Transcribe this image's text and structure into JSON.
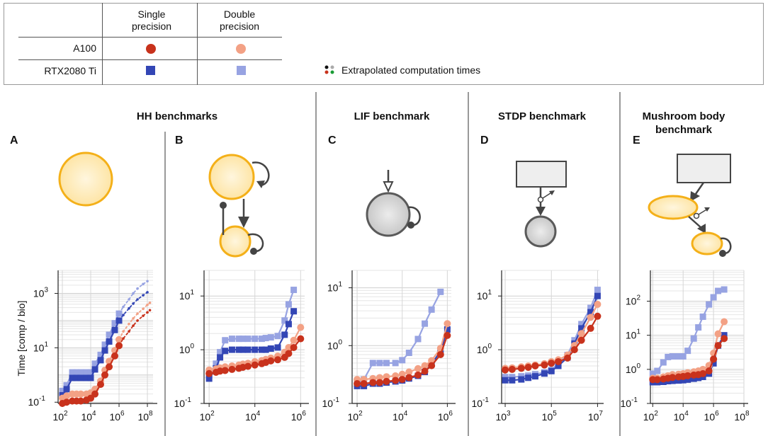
{
  "legend": {
    "col_single": "Single precision",
    "col_double": "Double precision",
    "row_a100": "A100",
    "row_rtx": "RTX2080 Ti",
    "extrapolated": "Extrapolated computation times"
  },
  "colors": {
    "a100_single": "#c8321c",
    "a100_double": "#f3a185",
    "rtx_single": "#3346b5",
    "rtx_double": "#97a3e2",
    "neuron_fill": "#fde9b3",
    "neuron_stroke": "#f4b019",
    "lif_fill": "#cfcfcf",
    "lif_stroke": "#5a5a5a"
  },
  "header": {
    "hh": "HH benchmarks",
    "lif": "LIF benchmark",
    "stdp": "STDP benchmark",
    "mb_line1": "Mushroom body",
    "mb_line2": "benchmark"
  },
  "labels": {
    "A": "A",
    "B": "B",
    "C": "C",
    "D": "D",
    "E": "E"
  },
  "ylabel": "Time [comp / bio]",
  "chart_data": [
    {
      "panel": "A",
      "type": "line",
      "xscale": "log",
      "yscale": "log",
      "xlim": [
        50,
        250000000
      ],
      "ylim": [
        0.09,
        7000
      ],
      "xticks": [
        {
          "v": 100,
          "e": "2"
        },
        {
          "v": 10000,
          "e": "4"
        },
        {
          "v": 1000000,
          "e": "6"
        },
        {
          "v": 100000000,
          "e": "8"
        }
      ],
      "yticks": [
        {
          "v": 0.1,
          "e": "-1"
        },
        {
          "v": 10,
          "e": "1"
        },
        {
          "v": 1000,
          "e": "3"
        }
      ],
      "series": [
        {
          "name": "RTX2080 Ti double",
          "key": "rtx_double",
          "marker": "square",
          "x": [
            100,
            200,
            500,
            1000,
            2000,
            5000,
            10000,
            20000,
            50000,
            100000,
            200000,
            500000,
            1000000
          ],
          "y": [
            0.26,
            0.42,
            1.25,
            1.25,
            1.25,
            1.25,
            1.25,
            2.6,
            5.5,
            13,
            30,
            80,
            180
          ],
          "ex": [
            2000000,
            5000000,
            10000000,
            20000000,
            50000000,
            100000000
          ],
          "ey": [
            320,
            600,
            1000,
            1500,
            2200,
            2800
          ]
        },
        {
          "name": "RTX2080 Ti single",
          "key": "rtx_single",
          "marker": "square",
          "x": [
            100,
            200,
            500,
            1000,
            2000,
            5000,
            10000,
            20000,
            50000,
            100000,
            200000,
            500000,
            1000000
          ],
          "y": [
            0.18,
            0.3,
            0.78,
            0.78,
            0.78,
            0.78,
            0.78,
            1.6,
            3.5,
            8,
            17,
            45,
            100
          ],
          "ex": [
            2000000,
            5000000,
            10000000,
            20000000,
            50000000,
            100000000
          ],
          "ey": [
            160,
            280,
            420,
            600,
            850,
            1100
          ]
        },
        {
          "name": "A100 double",
          "key": "a100_double",
          "marker": "circle",
          "x": [
            100,
            200,
            500,
            1000,
            2000,
            5000,
            10000,
            20000,
            50000,
            100000,
            200000,
            500000,
            1000000
          ],
          "y": [
            0.14,
            0.17,
            0.2,
            0.2,
            0.2,
            0.2,
            0.22,
            0.3,
            0.6,
            1.5,
            3.2,
            8,
            20
          ],
          "ex": [
            2000000,
            5000000,
            10000000,
            20000000,
            50000000,
            100000000,
            150000000
          ],
          "ey": [
            40,
            75,
            120,
            180,
            270,
            380,
            450
          ]
        },
        {
          "name": "A100 single",
          "key": "a100_single",
          "marker": "circle",
          "x": [
            100,
            200,
            500,
            1000,
            2000,
            5000,
            10000,
            20000,
            50000,
            100000,
            200000,
            500000,
            1000000
          ],
          "y": [
            0.09,
            0.1,
            0.11,
            0.11,
            0.11,
            0.12,
            0.14,
            0.2,
            0.45,
            1,
            2,
            5,
            12
          ],
          "ex": [
            2000000,
            5000000,
            10000000,
            20000000,
            50000000,
            100000000,
            150000000
          ],
          "ey": [
            22,
            40,
            65,
            100,
            150,
            200,
            240
          ]
        }
      ]
    },
    {
      "panel": "B",
      "type": "line",
      "xscale": "log",
      "yscale": "log",
      "xlim": [
        60,
        1500000
      ],
      "ylim": [
        0.1,
        30
      ],
      "xticks": [
        {
          "v": 100,
          "e": "2"
        },
        {
          "v": 10000,
          "e": "4"
        },
        {
          "v": 1000000,
          "e": "6"
        }
      ],
      "yticks": [
        {
          "v": 0.1,
          "e": "-1"
        },
        {
          "v": 1,
          "e": "0"
        },
        {
          "v": 10,
          "e": "1"
        }
      ],
      "series": [
        {
          "name": "RTX2080 Ti double",
          "key": "rtx_double",
          "marker": "square",
          "x": [
            100,
            200,
            300,
            500,
            1000,
            2000,
            3000,
            5000,
            10000,
            20000,
            30000,
            50000,
            100000,
            200000,
            300000,
            500000
          ],
          "y": [
            0.34,
            0.55,
            0.9,
            1.5,
            1.6,
            1.6,
            1.6,
            1.6,
            1.6,
            1.6,
            1.65,
            1.7,
            1.8,
            3.5,
            7,
            13
          ]
        },
        {
          "name": "RTX2080 Ti single",
          "key": "rtx_single",
          "marker": "square",
          "x": [
            100,
            200,
            300,
            500,
            1000,
            2000,
            3000,
            5000,
            10000,
            20000,
            30000,
            50000,
            100000,
            200000,
            300000,
            500000
          ],
          "y": [
            0.29,
            0.45,
            0.72,
            0.95,
            1.0,
            1.0,
            1.0,
            1.0,
            1.0,
            1.0,
            1.0,
            1.05,
            1.1,
            1.9,
            3,
            5.2
          ]
        },
        {
          "name": "A100 double",
          "key": "a100_double",
          "marker": "circle",
          "x": [
            100,
            200,
            300,
            500,
            1000,
            2000,
            3000,
            5000,
            10000,
            20000,
            30000,
            50000,
            100000,
            200000,
            300000,
            500000,
            1000000
          ],
          "y": [
            0.42,
            0.44,
            0.46,
            0.48,
            0.5,
            0.52,
            0.54,
            0.56,
            0.6,
            0.63,
            0.66,
            0.7,
            0.76,
            0.9,
            1.1,
            1.5,
            2.6
          ]
        },
        {
          "name": "A100 single",
          "key": "a100_single",
          "marker": "circle",
          "x": [
            100,
            200,
            300,
            500,
            1000,
            2000,
            3000,
            5000,
            10000,
            20000,
            30000,
            50000,
            100000,
            200000,
            300000,
            500000,
            1000000
          ],
          "y": [
            0.36,
            0.38,
            0.4,
            0.41,
            0.43,
            0.45,
            0.47,
            0.49,
            0.52,
            0.55,
            0.58,
            0.62,
            0.65,
            0.72,
            0.85,
            1.1,
            1.6
          ]
        }
      ]
    },
    {
      "panel": "C",
      "type": "line",
      "xscale": "log",
      "yscale": "log",
      "xlim": [
        60,
        1500000
      ],
      "ylim": [
        0.1,
        20
      ],
      "xticks": [
        {
          "v": 100,
          "e": "2"
        },
        {
          "v": 10000,
          "e": "4"
        },
        {
          "v": 1000000,
          "e": "6"
        }
      ],
      "yticks": [
        {
          "v": 0.1,
          "e": "-1"
        },
        {
          "v": 1,
          "e": "0"
        },
        {
          "v": 10,
          "e": "1"
        }
      ],
      "series": [
        {
          "name": "RTX2080 Ti double",
          "key": "rtx_double",
          "marker": "square",
          "x": [
            100,
            200,
            500,
            1000,
            2000,
            5000,
            10000,
            20000,
            50000,
            100000,
            200000,
            500000
          ],
          "y": [
            0.22,
            0.26,
            0.5,
            0.5,
            0.5,
            0.5,
            0.56,
            0.75,
            1.3,
            2.4,
            4.2,
            8.5
          ]
        },
        {
          "name": "RTX2080 Ti single",
          "key": "rtx_single",
          "marker": "square",
          "x": [
            100,
            200,
            500,
            1000,
            2000,
            5000,
            10000,
            20000,
            50000,
            100000,
            200000,
            500000,
            1000000
          ],
          "y": [
            0.2,
            0.2,
            0.22,
            0.22,
            0.23,
            0.24,
            0.25,
            0.27,
            0.3,
            0.35,
            0.48,
            0.8,
            1.9
          ]
        },
        {
          "name": "A100 double",
          "key": "a100_double",
          "marker": "circle",
          "x": [
            100,
            200,
            500,
            1000,
            2000,
            5000,
            10000,
            20000,
            50000,
            100000,
            200000,
            500000,
            1000000
          ],
          "y": [
            0.26,
            0.26,
            0.27,
            0.28,
            0.29,
            0.3,
            0.32,
            0.35,
            0.4,
            0.45,
            0.55,
            0.9,
            2.4
          ]
        },
        {
          "name": "A100 single",
          "key": "a100_single",
          "marker": "circle",
          "x": [
            100,
            200,
            500,
            1000,
            2000,
            5000,
            10000,
            20000,
            50000,
            100000,
            200000,
            500000,
            1000000
          ],
          "y": [
            0.22,
            0.22,
            0.23,
            0.23,
            0.24,
            0.25,
            0.26,
            0.28,
            0.31,
            0.36,
            0.45,
            0.7,
            1.5
          ]
        }
      ]
    },
    {
      "panel": "D",
      "type": "line",
      "xscale": "log",
      "yscale": "log",
      "xlim": [
        700,
        12000000
      ],
      "ylim": [
        0.1,
        30
      ],
      "xticks": [
        {
          "v": 1000,
          "e": "3"
        },
        {
          "v": 100000,
          "e": "5"
        },
        {
          "v": 10000000,
          "e": "7"
        }
      ],
      "yticks": [
        {
          "v": 0.1,
          "e": "-1"
        },
        {
          "v": 1,
          "e": "0"
        },
        {
          "v": 10,
          "e": "1"
        }
      ],
      "series": [
        {
          "name": "RTX2080 Ti double",
          "key": "rtx_double",
          "marker": "square",
          "x": [
            1000,
            2000,
            5000,
            10000,
            20000,
            50000,
            100000,
            200000,
            500000,
            1000000,
            2000000,
            5000000,
            10000000
          ],
          "y": [
            0.31,
            0.31,
            0.32,
            0.33,
            0.35,
            0.38,
            0.42,
            0.55,
            0.8,
            1.5,
            3,
            6,
            13
          ]
        },
        {
          "name": "RTX2080 Ti single",
          "key": "rtx_single",
          "marker": "square",
          "x": [
            1000,
            2000,
            5000,
            10000,
            20000,
            50000,
            100000,
            200000,
            500000,
            1000000,
            2000000,
            5000000,
            10000000
          ],
          "y": [
            0.27,
            0.27,
            0.28,
            0.3,
            0.32,
            0.36,
            0.4,
            0.5,
            0.72,
            1.3,
            2.5,
            5,
            10
          ]
        },
        {
          "name": "A100 double",
          "key": "a100_double",
          "marker": "circle",
          "x": [
            1000,
            2000,
            5000,
            10000,
            20000,
            50000,
            100000,
            200000,
            500000,
            1000000,
            2000000,
            5000000,
            10000000
          ],
          "y": [
            0.45,
            0.46,
            0.48,
            0.5,
            0.52,
            0.55,
            0.6,
            0.65,
            0.8,
            1.2,
            2,
            4,
            7
          ]
        },
        {
          "name": "A100 single",
          "key": "a100_single",
          "marker": "circle",
          "x": [
            1000,
            2000,
            5000,
            10000,
            20000,
            50000,
            100000,
            200000,
            500000,
            1000000,
            2000000,
            5000000,
            10000000
          ],
          "y": [
            0.42,
            0.43,
            0.45,
            0.47,
            0.5,
            0.52,
            0.56,
            0.6,
            0.7,
            1,
            1.5,
            2.5,
            4.2
          ]
        }
      ]
    },
    {
      "panel": "E",
      "type": "line",
      "xscale": "log",
      "yscale": "log",
      "xlim": [
        70,
        100000000
      ],
      "ylim": [
        0.1,
        800
      ],
      "xticks": [
        {
          "v": 100,
          "e": "2"
        },
        {
          "v": 10000,
          "e": "4"
        },
        {
          "v": 1000000,
          "e": "6"
        },
        {
          "v": 100000000,
          "e": "8"
        }
      ],
      "yticks": [
        {
          "v": 0.1,
          "e": "-1"
        },
        {
          "v": 1,
          "e": "0"
        },
        {
          "v": 10,
          "e": "1"
        },
        {
          "v": 100,
          "e": "2"
        }
      ],
      "series": [
        {
          "name": "RTX2080 Ti double",
          "key": "rtx_double",
          "marker": "square",
          "x": [
            100,
            200,
            500,
            1000,
            2000,
            5000,
            10000,
            20000,
            50000,
            100000,
            200000,
            500000,
            1000000,
            2000000,
            5000000
          ],
          "y": [
            0.75,
            0.9,
            1.6,
            2.3,
            2.4,
            2.4,
            2.4,
            3.5,
            8,
            17,
            35,
            80,
            130,
            200,
            220
          ]
        },
        {
          "name": "RTX2080 Ti single",
          "key": "rtx_single",
          "marker": "square",
          "x": [
            100,
            200,
            500,
            1000,
            2000,
            5000,
            10000,
            20000,
            50000,
            100000,
            200000,
            500000,
            1000000,
            2000000,
            5000000
          ],
          "y": [
            0.42,
            0.42,
            0.43,
            0.45,
            0.46,
            0.47,
            0.48,
            0.5,
            0.53,
            0.56,
            0.6,
            0.75,
            1.5,
            5,
            10
          ]
        },
        {
          "name": "A100 double",
          "key": "a100_double",
          "marker": "circle",
          "x": [
            100,
            200,
            500,
            1000,
            2000,
            5000,
            10000,
            20000,
            50000,
            100000,
            200000,
            500000,
            1000000,
            2000000,
            5000000
          ],
          "y": [
            0.55,
            0.55,
            0.6,
            0.65,
            0.7,
            0.72,
            0.75,
            0.8,
            0.85,
            0.9,
            1,
            1.3,
            3,
            11,
            25
          ]
        },
        {
          "name": "A100 single",
          "key": "a100_single",
          "marker": "circle",
          "x": [
            100,
            200,
            500,
            1000,
            2000,
            5000,
            10000,
            20000,
            50000,
            100000,
            200000,
            500000,
            1000000,
            2000000,
            5000000
          ],
          "y": [
            0.5,
            0.5,
            0.52,
            0.55,
            0.58,
            0.6,
            0.62,
            0.65,
            0.68,
            0.7,
            0.75,
            0.9,
            2,
            5,
            8
          ]
        }
      ]
    }
  ]
}
